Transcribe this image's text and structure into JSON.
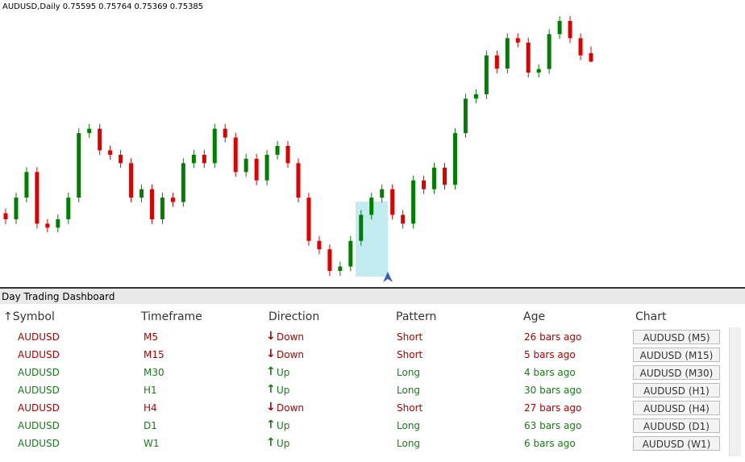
{
  "chart_header": {
    "symbol": "AUDUSD,Daily",
    "ohlc": [
      "0.75595",
      "0.75764",
      "0.75369",
      "0.75385"
    ]
  },
  "price_chart": {
    "up_color": "#008000",
    "down_color": "#e00000",
    "candles": [
      [
        0.716,
        0.7172,
        0.7133,
        0.7145
      ],
      [
        0.7145,
        0.7211,
        0.7133,
        0.7199
      ],
      [
        0.7199,
        0.7275,
        0.7187,
        0.7263
      ],
      [
        0.7263,
        0.7275,
        0.7122,
        0.7134
      ],
      [
        0.7134,
        0.7146,
        0.7112,
        0.7124
      ],
      [
        0.7124,
        0.7157,
        0.7112,
        0.7145
      ],
      [
        0.7145,
        0.7211,
        0.7133,
        0.7199
      ],
      [
        0.7199,
        0.7372,
        0.7187,
        0.736
      ],
      [
        0.736,
        0.7383,
        0.7348,
        0.7371
      ],
      [
        0.7371,
        0.7383,
        0.7305,
        0.7317
      ],
      [
        0.7317,
        0.7329,
        0.7294,
        0.7306
      ],
      [
        0.7306,
        0.7318,
        0.7273,
        0.7285
      ],
      [
        0.7285,
        0.7297,
        0.7187,
        0.7199
      ],
      [
        0.7199,
        0.7232,
        0.7187,
        0.722
      ],
      [
        0.722,
        0.7232,
        0.7133,
        0.7145
      ],
      [
        0.7145,
        0.7211,
        0.7133,
        0.7199
      ],
      [
        0.7199,
        0.7211,
        0.7176,
        0.7188
      ],
      [
        0.7188,
        0.7297,
        0.7176,
        0.7285
      ],
      [
        0.7285,
        0.7318,
        0.7273,
        0.7306
      ],
      [
        0.7306,
        0.7318,
        0.7273,
        0.7285
      ],
      [
        0.7285,
        0.7383,
        0.7273,
        0.7371
      ],
      [
        0.7371,
        0.7383,
        0.7337,
        0.7349
      ],
      [
        0.7349,
        0.7361,
        0.7251,
        0.7263
      ],
      [
        0.7263,
        0.7308,
        0.7251,
        0.7296
      ],
      [
        0.7296,
        0.7308,
        0.723,
        0.7242
      ],
      [
        0.7242,
        0.7318,
        0.723,
        0.7306
      ],
      [
        0.7306,
        0.734,
        0.7294,
        0.7328
      ],
      [
        0.7328,
        0.734,
        0.7273,
        0.7285
      ],
      [
        0.7285,
        0.7297,
        0.7187,
        0.7199
      ],
      [
        0.7199,
        0.7211,
        0.7079,
        0.7091
      ],
      [
        0.7091,
        0.7103,
        0.7058,
        0.707
      ],
      [
        0.707,
        0.7082,
        0.7004,
        0.7016
      ],
      [
        0.7016,
        0.7039,
        0.7004,
        0.7027
      ],
      [
        0.7027,
        0.7103,
        0.7015,
        0.7091
      ],
      [
        0.7091,
        0.7168,
        0.7079,
        0.7156
      ],
      [
        0.7156,
        0.7211,
        0.7144,
        0.7199
      ],
      [
        0.7199,
        0.7232,
        0.7187,
        0.722
      ],
      [
        0.722,
        0.7232,
        0.7144,
        0.7156
      ],
      [
        0.7156,
        0.7168,
        0.7122,
        0.7134
      ],
      [
        0.7134,
        0.7254,
        0.7122,
        0.7242
      ],
      [
        0.7242,
        0.7254,
        0.7208,
        0.722
      ],
      [
        0.722,
        0.7286,
        0.7208,
        0.7274
      ],
      [
        0.7274,
        0.7286,
        0.7219,
        0.7231
      ],
      [
        0.7231,
        0.7372,
        0.7219,
        0.736
      ],
      [
        0.736,
        0.7458,
        0.7348,
        0.7446
      ],
      [
        0.7446,
        0.7469,
        0.7434,
        0.7457
      ],
      [
        0.7457,
        0.7566,
        0.7445,
        0.7554
      ],
      [
        0.7554,
        0.7566,
        0.7509,
        0.7521
      ],
      [
        0.7521,
        0.7609,
        0.7509,
        0.7597
      ],
      [
        0.7597,
        0.7609,
        0.7574,
        0.7586
      ],
      [
        0.7586,
        0.7598,
        0.7499,
        0.7511
      ],
      [
        0.7511,
        0.7532,
        0.7499,
        0.752
      ],
      [
        0.752,
        0.7619,
        0.7508,
        0.7607
      ],
      [
        0.7607,
        0.7652,
        0.7595,
        0.764
      ],
      [
        0.764,
        0.7652,
        0.7585,
        0.7597
      ],
      [
        0.7597,
        0.7609,
        0.7542,
        0.7554
      ],
      [
        0.75595,
        0.75764,
        0.75369,
        0.75385
      ]
    ]
  },
  "dashboard": {
    "title": "Day Trading Dashboard",
    "columns": [
      "↑Symbol",
      "Timeframe",
      "Direction",
      "Pattern",
      "Age",
      "Chart"
    ],
    "rows": [
      {
        "symbol": "AUDUSD",
        "timeframe": "M5",
        "arrow": "↓",
        "direction": "Down",
        "pattern": "Short",
        "age": "26 bars ago",
        "chart": "AUDUSD (M5)",
        "color": "#b00000"
      },
      {
        "symbol": "AUDUSD",
        "timeframe": "M15",
        "arrow": "↓",
        "direction": "Down",
        "pattern": "Short",
        "age": "5 bars ago",
        "chart": "AUDUSD (M15)",
        "color": "#b00000"
      },
      {
        "symbol": "AUDUSD",
        "timeframe": "M30",
        "arrow": "↑",
        "direction": "Up",
        "pattern": "Long",
        "age": "4 bars ago",
        "chart": "AUDUSD (M30)",
        "color": "#1a7a1a"
      },
      {
        "symbol": "AUDUSD",
        "timeframe": "H1",
        "arrow": "↑",
        "direction": "Up",
        "pattern": "Long",
        "age": "30 bars ago",
        "chart": "AUDUSD (H1)",
        "color": "#1a7a1a"
      },
      {
        "symbol": "AUDUSD",
        "timeframe": "H4",
        "arrow": "↓",
        "direction": "Down",
        "pattern": "Short",
        "age": "27 bars ago",
        "chart": "AUDUSD (H4)",
        "color": "#b00000"
      },
      {
        "symbol": "AUDUSD",
        "timeframe": "D1",
        "arrow": "↑",
        "direction": "Up",
        "pattern": "Long",
        "age": "63 bars ago",
        "chart": "AUDUSD (D1)",
        "color": "#1a7a1a"
      },
      {
        "symbol": "AUDUSD",
        "timeframe": "W1",
        "arrow": "↑",
        "direction": "Up",
        "pattern": "Long",
        "age": "6 bars ago",
        "chart": "AUDUSD (W1)",
        "color": "#1a7a1a"
      }
    ]
  }
}
